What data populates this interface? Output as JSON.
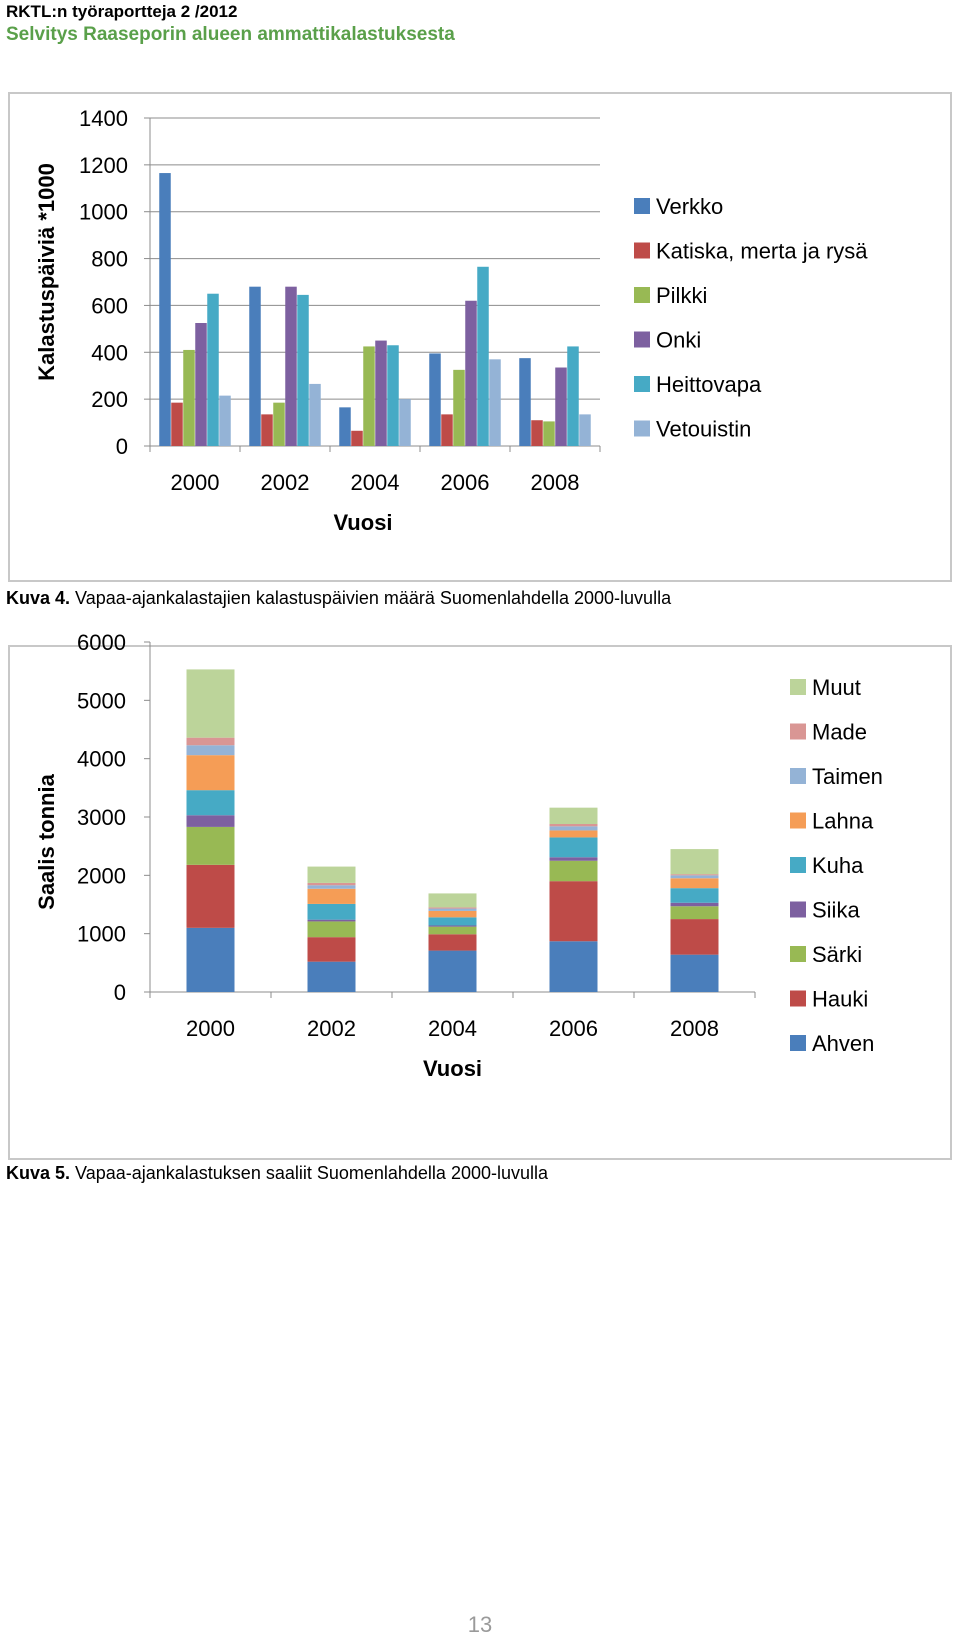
{
  "header": {
    "line1": "RKTL:n työraportteja 2 /2012",
    "line2": "Selvitys Raaseporin alueen ammattikalastuksesta"
  },
  "captions": [
    {
      "label": "Kuva 4.",
      "text": " Vapaa-ajankalastajien kalastuspäivien määrä Suomenlahdella 2000-luvulla"
    },
    {
      "label": "Kuva 5.",
      "text": " Vapaa-ajankalastuksen saaliit Suomenlahdella 2000-luvulla"
    }
  ],
  "page_number": "13",
  "chart_data": [
    {
      "type": "bar",
      "title": "",
      "xlabel": "Vuosi",
      "ylabel": "Kalastuspäiviä *1000",
      "ylim": [
        0,
        1400
      ],
      "yticks": [
        0,
        200,
        400,
        600,
        800,
        1000,
        1200,
        1400
      ],
      "categories": [
        "2000",
        "2002",
        "2004",
        "2006",
        "2008"
      ],
      "grid": true,
      "legend_position": "right",
      "series": [
        {
          "name": "Verkko",
          "color": "#4a7ebb",
          "values": [
            1165,
            680,
            165,
            395,
            375
          ]
        },
        {
          "name": "Katiska, merta ja rysä",
          "color": "#be4b48",
          "values": [
            185,
            135,
            65,
            135,
            110
          ]
        },
        {
          "name": "Pilkki",
          "color": "#98b954",
          "values": [
            410,
            185,
            425,
            325,
            105
          ]
        },
        {
          "name": "Onki",
          "color": "#7d60a0",
          "values": [
            525,
            680,
            450,
            620,
            335
          ]
        },
        {
          "name": "Heittovapa",
          "color": "#46aac5",
          "values": [
            650,
            645,
            430,
            765,
            425
          ]
        },
        {
          "name": "Vetouistin",
          "color": "#94b3d6",
          "values": [
            215,
            265,
            200,
            370,
            135
          ]
        }
      ]
    },
    {
      "type": "bar",
      "stacked": true,
      "title": "",
      "xlabel": "Vuosi",
      "ylabel": "Saalis tonnia",
      "ylim": [
        0,
        6000
      ],
      "yticks": [
        0,
        1000,
        2000,
        3000,
        4000,
        5000,
        6000
      ],
      "categories": [
        "2000",
        "2002",
        "2004",
        "2006",
        "2008"
      ],
      "grid": false,
      "legend_position": "right",
      "series": [
        {
          "name": "Ahven",
          "color": "#4a7ebb",
          "values": [
            1100,
            520,
            710,
            870,
            640
          ]
        },
        {
          "name": "Hauki",
          "color": "#be4b48",
          "values": [
            1080,
            420,
            280,
            1030,
            610
          ]
        },
        {
          "name": "Särki",
          "color": "#98b954",
          "values": [
            650,
            270,
            130,
            350,
            220
          ]
        },
        {
          "name": "Siika",
          "color": "#7d60a0",
          "values": [
            200,
            30,
            20,
            60,
            60
          ]
        },
        {
          "name": "Kuha",
          "color": "#46aac5",
          "values": [
            430,
            270,
            140,
            340,
            250
          ]
        },
        {
          "name": "Lahna",
          "color": "#f59d56",
          "values": [
            600,
            260,
            110,
            120,
            170
          ]
        },
        {
          "name": "Taimen",
          "color": "#94b3d6",
          "values": [
            170,
            60,
            40,
            70,
            50
          ]
        },
        {
          "name": "Made",
          "color": "#d99694",
          "values": [
            130,
            40,
            20,
            40,
            20
          ]
        },
        {
          "name": "Muut",
          "color": "#bcd49a",
          "values": [
            1170,
            280,
            240,
            280,
            430
          ]
        }
      ]
    }
  ]
}
